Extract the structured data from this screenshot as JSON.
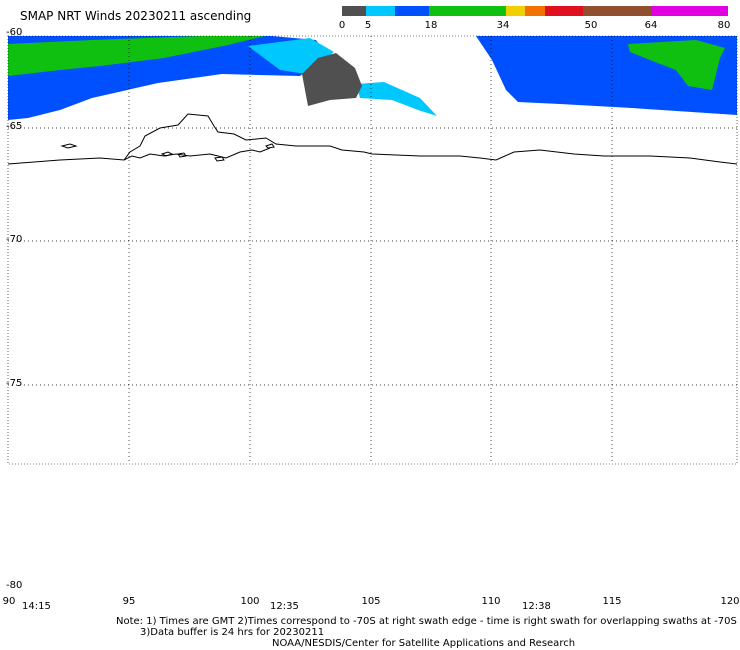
{
  "title": "SMAP NRT Winds 20230211 ascending",
  "colorbar": {
    "segments": [
      {
        "color": "#505050",
        "span": 5
      },
      {
        "color": "#00c8ff",
        "span": 6
      },
      {
        "color": "#0050ff",
        "span": 7
      },
      {
        "color": "#10c010",
        "span": 16
      },
      {
        "color": "#f0d000",
        "span": 4
      },
      {
        "color": "#f07000",
        "span": 4
      },
      {
        "color": "#e01020",
        "span": 8
      },
      {
        "color": "#905030",
        "span": 14
      },
      {
        "color": "#e000e0",
        "span": 16
      }
    ],
    "labels": [
      "0",
      "5",
      "18",
      "34",
      "50",
      "64",
      "80"
    ]
  },
  "axes": {
    "lat_labels": [
      "-60",
      "-65",
      "-70",
      "-75",
      "-80"
    ],
    "lon_labels": [
      "90",
      "95",
      "100",
      "105",
      "110",
      "115",
      "120"
    ]
  },
  "times": [
    "14:15",
    "12:35",
    "12:38"
  ],
  "notes": {
    "line1": "Note: 1) Times are GMT 2)Times correspond to -70S at right swath edge - time is right swath for overlapping swaths at -70S",
    "line2": "3)Data buffer is 24 hrs for 20230211",
    "line3": "NOAA/NESDIS/Center for Satellite Applications and Research"
  }
}
